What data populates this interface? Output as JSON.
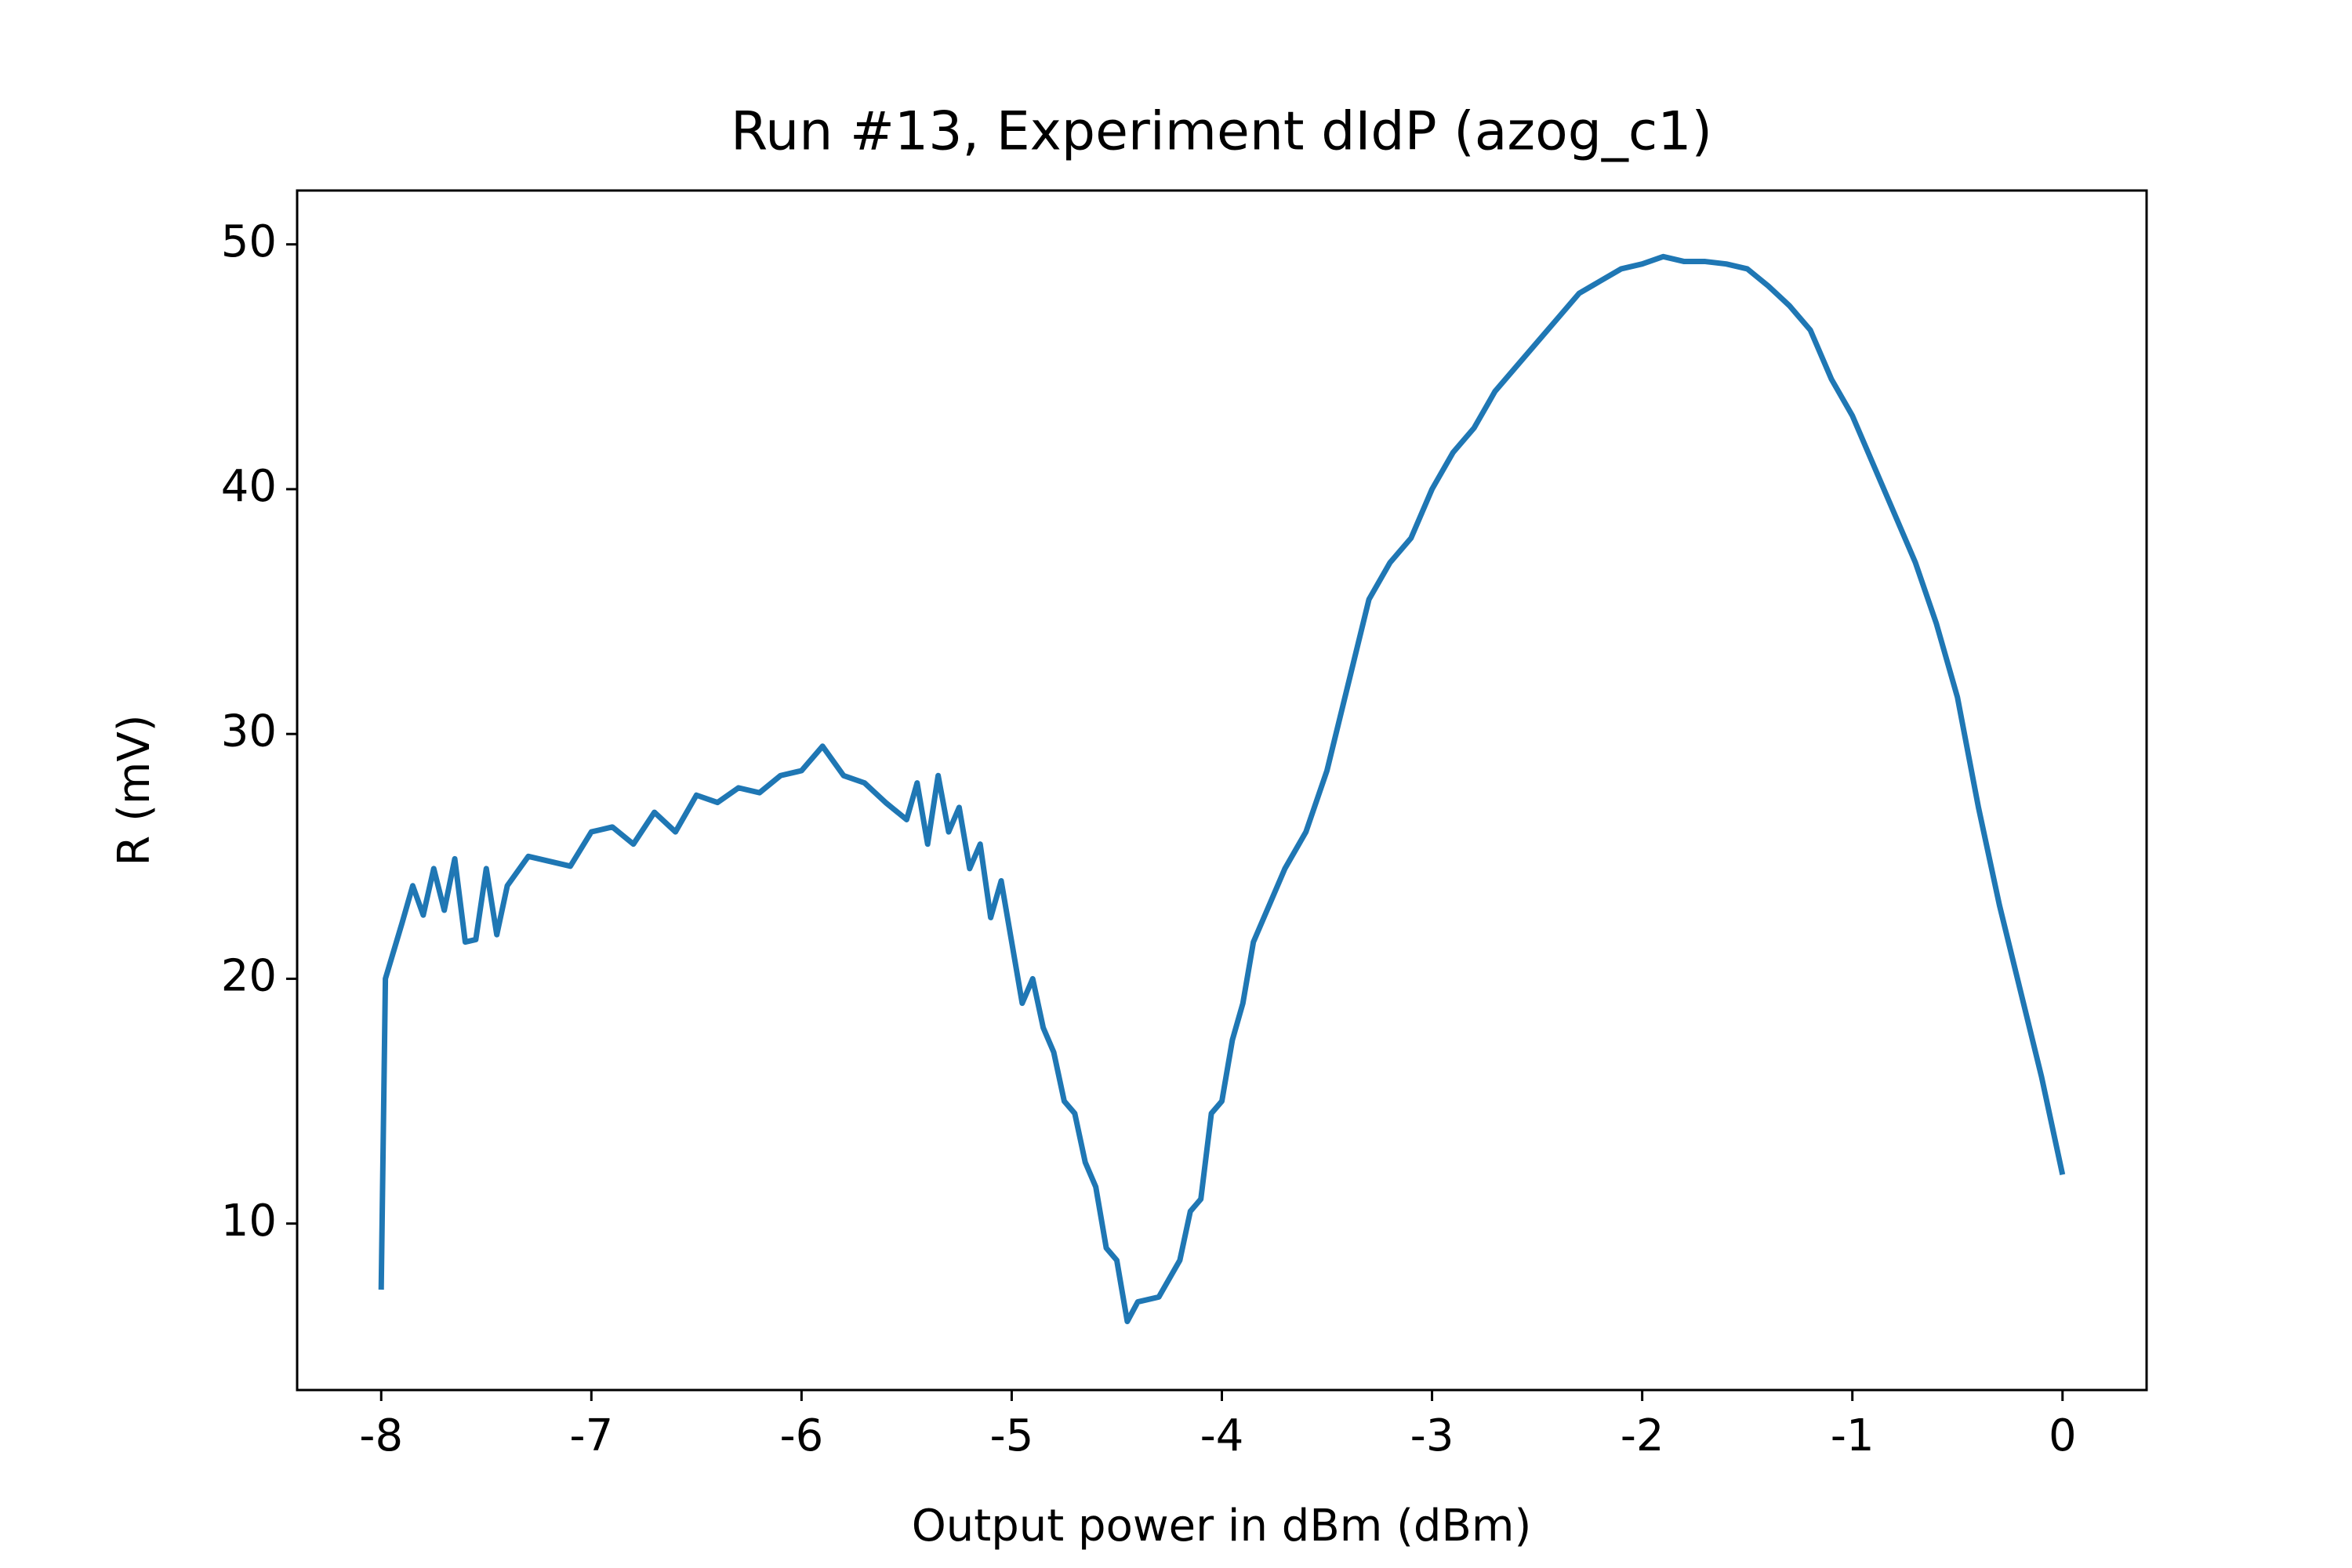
{
  "chart_data": {
    "type": "line",
    "title": "Run #13, Experiment dIdP (azog_c1)",
    "xlabel": "Output power in dBm (dBm)",
    "ylabel": "R (mV)",
    "xlim": [
      -8.4,
      0.4
    ],
    "ylim": [
      3.2,
      52.2
    ],
    "xticks": [
      -8,
      -7,
      -6,
      -5,
      -4,
      -3,
      -2,
      -1,
      0
    ],
    "yticks": [
      10,
      20,
      30,
      40,
      50
    ],
    "grid": false,
    "series": [
      {
        "name": "R",
        "color": "#1f77b4",
        "x": [
          -8.0,
          -7.98,
          -7.9,
          -7.85,
          -7.8,
          -7.75,
          -7.7,
          -7.65,
          -7.6,
          -7.55,
          -7.5,
          -7.45,
          -7.4,
          -7.3,
          -7.2,
          -7.1,
          -7.0,
          -6.9,
          -6.8,
          -6.7,
          -6.6,
          -6.5,
          -6.4,
          -6.3,
          -6.2,
          -6.1,
          -6.0,
          -5.9,
          -5.8,
          -5.7,
          -5.6,
          -5.5,
          -5.45,
          -5.4,
          -5.35,
          -5.3,
          -5.25,
          -5.2,
          -5.15,
          -5.1,
          -5.05,
          -5.0,
          -4.95,
          -4.9,
          -4.85,
          -4.8,
          -4.75,
          -4.7,
          -4.65,
          -4.6,
          -4.55,
          -4.5,
          -4.45,
          -4.4,
          -4.3,
          -4.2,
          -4.15,
          -4.1,
          -4.05,
          -4.0,
          -3.95,
          -3.9,
          -3.85,
          -3.8,
          -3.7,
          -3.6,
          -3.5,
          -3.4,
          -3.3,
          -3.2,
          -3.1,
          -3.0,
          -2.9,
          -2.8,
          -2.7,
          -2.6,
          -2.5,
          -2.4,
          -2.3,
          -2.2,
          -2.1,
          -2.0,
          -1.9,
          -1.8,
          -1.7,
          -1.6,
          -1.5,
          -1.4,
          -1.3,
          -1.2,
          -1.1,
          -1.0,
          -0.9,
          -0.8,
          -0.7,
          -0.6,
          -0.5,
          -0.4,
          -0.3,
          -0.2,
          -0.1,
          -0.05,
          0.0
        ],
        "values": [
          7.3,
          20.0,
          22.3,
          23.8,
          22.6,
          24.5,
          22.8,
          24.9,
          21.5,
          21.6,
          24.5,
          21.8,
          23.8,
          25.0,
          24.8,
          24.6,
          26.0,
          26.2,
          25.5,
          26.8,
          26.0,
          27.5,
          27.2,
          27.8,
          27.6,
          28.3,
          28.5,
          29.5,
          28.3,
          28.0,
          27.2,
          26.5,
          28.0,
          25.5,
          28.3,
          26.0,
          27.0,
          24.5,
          25.5,
          22.5,
          24.0,
          21.5,
          19.0,
          20.0,
          18.0,
          17.0,
          15.0,
          14.5,
          12.5,
          11.5,
          9.0,
          8.5,
          6.0,
          6.8,
          7.0,
          8.5,
          10.5,
          11.0,
          14.5,
          15.0,
          17.5,
          19.0,
          21.5,
          22.5,
          24.5,
          26.0,
          28.5,
          32.0,
          35.5,
          37.0,
          38.0,
          40.0,
          41.5,
          42.5,
          44.0,
          45.0,
          46.0,
          47.0,
          48.0,
          48.5,
          49.0,
          49.2,
          49.5,
          49.3,
          49.3,
          49.2,
          49.0,
          48.3,
          47.5,
          46.5,
          44.5,
          43.0,
          41.0,
          39.0,
          37.0,
          34.5,
          31.5,
          27.0,
          23.0,
          19.5,
          16.0,
          14.0,
          12.0
        ]
      }
    ]
  }
}
